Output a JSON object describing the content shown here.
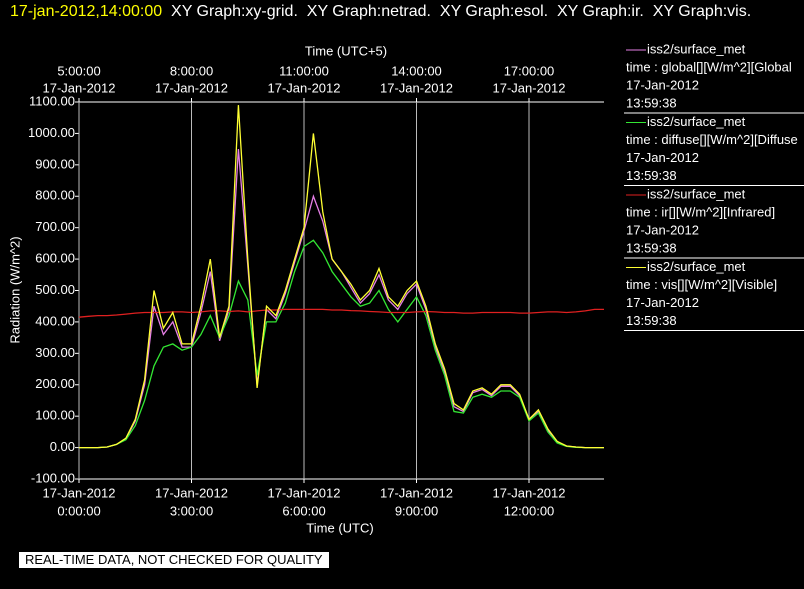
{
  "header": {
    "timestamp": "17-jan-2012,14:00:00",
    "graphs": "XY Graph:xy-grid.  XY Graph:netrad.  XY Graph:esol.  XY Graph:ir.  XY Graph:vis."
  },
  "footer": "REAL-TIME DATA, NOT CHECKED FOR QUALITY",
  "chart_data": {
    "type": "line",
    "ylabel": "Radiation (W/m^2)",
    "xlabel": "Time (UTC)",
    "x2label": "Time (UTC+5)",
    "xlim": [
      0,
      14
    ],
    "ylim": [
      -100,
      1100
    ],
    "grid": true,
    "xticks": [
      {
        "value": 0,
        "label": "0:00:00"
      },
      {
        "value": 3,
        "label": "3:00:00"
      },
      {
        "value": 6,
        "label": "6:00:00"
      },
      {
        "value": 9,
        "label": "9:00:00"
      },
      {
        "value": 12,
        "label": "12:00:00"
      }
    ],
    "xtick_dates": [
      "17-Jan-2012",
      "17-Jan-2012",
      "17-Jan-2012",
      "17-Jan-2012",
      "17-Jan-2012"
    ],
    "x2ticks": [
      {
        "value": 0,
        "label": "5:00:00"
      },
      {
        "value": 3,
        "label": "8:00:00"
      },
      {
        "value": 6,
        "label": "11:00:00"
      },
      {
        "value": 9,
        "label": "14:00:00"
      },
      {
        "value": 12,
        "label": "17:00:00"
      }
    ],
    "x2tick_dates": [
      "17-Jan-2012",
      "17-Jan-2012",
      "17-Jan-2012",
      "17-Jan-2012",
      "17-Jan-2012"
    ],
    "yticks": [
      {
        "value": 1100,
        "label": "1100.00"
      },
      {
        "value": 1000,
        "label": "1000.00"
      },
      {
        "value": 900,
        "label": "900.00"
      },
      {
        "value": 800,
        "label": "800.00"
      },
      {
        "value": 700,
        "label": "700.00"
      },
      {
        "value": 600,
        "label": "600.00"
      },
      {
        "value": 500,
        "label": "500.00"
      },
      {
        "value": 400,
        "label": "400.00"
      },
      {
        "value": 300,
        "label": "300.00"
      },
      {
        "value": 200,
        "label": "200.00"
      },
      {
        "value": 100,
        "label": "100.00"
      },
      {
        "value": 0,
        "label": "0.00"
      },
      {
        "value": -100,
        "label": "-100.00"
      }
    ],
    "x": [
      0,
      0.25,
      0.5,
      0.75,
      1,
      1.25,
      1.5,
      1.75,
      2,
      2.25,
      2.5,
      2.75,
      3,
      3.25,
      3.5,
      3.75,
      4,
      4.25,
      4.5,
      4.75,
      5,
      5.25,
      5.5,
      5.75,
      6,
      6.25,
      6.5,
      6.75,
      7,
      7.25,
      7.5,
      7.75,
      8,
      8.25,
      8.5,
      8.75,
      9,
      9.25,
      9.5,
      9.75,
      10,
      10.25,
      10.5,
      10.75,
      11,
      11.25,
      11.5,
      11.75,
      12,
      12.25,
      12.5,
      12.75,
      13,
      13.25,
      13.5,
      13.75,
      14
    ],
    "series": [
      {
        "source": "iss2/surface_met",
        "name": "time : global[][W/m^2][Global",
        "date": "17-Jan-2012",
        "time": "13:59:38",
        "color": "#e67fe6",
        "values": [
          0,
          0,
          0,
          2,
          10,
          28,
          85,
          200,
          450,
          360,
          400,
          320,
          320,
          430,
          560,
          340,
          440,
          950,
          580,
          200,
          440,
          410,
          490,
          590,
          690,
          800,
          720,
          600,
          560,
          510,
          460,
          490,
          550,
          470,
          440,
          490,
          520,
          440,
          320,
          240,
          130,
          115,
          175,
          185,
          165,
          195,
          195,
          165,
          90,
          115,
          55,
          18,
          5,
          2,
          0,
          0,
          0
        ]
      },
      {
        "source": "iss2/surface_met",
        "name": "time : diffuse[][W/m^2][Diffuse",
        "date": "17-Jan-2012",
        "time": "13:59:38",
        "color": "#33e633",
        "values": [
          0,
          0,
          0,
          2,
          10,
          25,
          70,
          150,
          260,
          320,
          330,
          310,
          320,
          360,
          420,
          350,
          420,
          530,
          470,
          230,
          400,
          400,
          460,
          560,
          640,
          660,
          620,
          560,
          520,
          480,
          450,
          460,
          500,
          440,
          400,
          440,
          480,
          420,
          310,
          230,
          115,
          110,
          160,
          170,
          160,
          180,
          180,
          160,
          85,
          110,
          50,
          15,
          4,
          1,
          0,
          0,
          0
        ]
      },
      {
        "source": "iss2/surface_met",
        "name": "time : ir[][W/m^2][Infrared]",
        "date": "17-Jan-2012",
        "time": "13:59:38",
        "color": "#e02020",
        "values": [
          415,
          418,
          420,
          420,
          422,
          425,
          428,
          430,
          430,
          430,
          432,
          432,
          430,
          432,
          435,
          435,
          433,
          435,
          432,
          435,
          438,
          438,
          440,
          440,
          440,
          440,
          440,
          438,
          438,
          436,
          435,
          433,
          432,
          430,
          430,
          430,
          432,
          433,
          432,
          430,
          430,
          428,
          428,
          430,
          430,
          430,
          430,
          428,
          428,
          430,
          432,
          432,
          430,
          432,
          435,
          440,
          440
        ]
      },
      {
        "source": "iss2/surface_met",
        "name": "time : vis[][W/m^2][Visible]",
        "date": "17-Jan-2012",
        "time": "13:59:38",
        "color": "#ffff33",
        "values": [
          0,
          0,
          0,
          2,
          10,
          30,
          90,
          215,
          500,
          380,
          430,
          330,
          330,
          450,
          600,
          350,
          450,
          1090,
          600,
          190,
          450,
          420,
          500,
          600,
          700,
          1000,
          750,
          600,
          560,
          520,
          470,
          500,
          570,
          480,
          450,
          500,
          530,
          450,
          330,
          250,
          140,
          120,
          180,
          190,
          170,
          200,
          200,
          170,
          90,
          120,
          60,
          20,
          5,
          2,
          0,
          0,
          0
        ]
      }
    ]
  }
}
